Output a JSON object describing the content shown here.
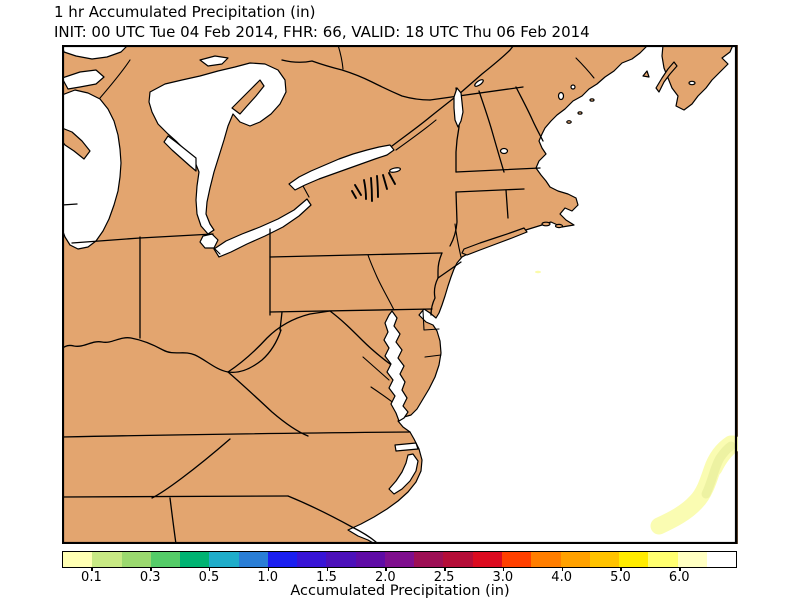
{
  "title": {
    "line1": "1 hr Accumulated Precipitation (in)",
    "line2": "INIT: 00 UTC Tue 04 Feb 2014, FHR: 66, VALID: 18 UTC Thu 06 Feb 2014"
  },
  "colorbar": {
    "label": "Accumulated Precipitation (in)",
    "tick_labels": [
      "0.1",
      "0.3",
      "0.5",
      "1.0",
      "1.5",
      "2.0",
      "2.5",
      "3.0",
      "4.0",
      "5.0",
      "6.0"
    ],
    "tick_values": [
      0.1,
      0.3,
      0.5,
      1.0,
      1.5,
      2.0,
      2.5,
      3.0,
      4.0,
      5.0,
      6.0
    ],
    "tick_boundary_indices": [
      1,
      3,
      5,
      7,
      9,
      11,
      13,
      15,
      17,
      19,
      21
    ],
    "num_segments": 23,
    "segment_colors": [
      "#ffffb3",
      "#c8e984",
      "#9bd96f",
      "#55cc68",
      "#00b372",
      "#1fadca",
      "#2a7ed6",
      "#1b1ff0",
      "#3814d6",
      "#4c10ba",
      "#5f0ba6",
      "#7f0e8e",
      "#9d0f55",
      "#b50d38",
      "#dc0b20",
      "#ff4000",
      "#ff7e00",
      "#ffa100",
      "#ffc300",
      "#ffec00",
      "#ffff70",
      "#ffffc2",
      "#ffffff"
    ]
  },
  "map": {
    "land_color": "#e3a56f",
    "water_color": "#ffffff",
    "line_color": "#000000",
    "precipitation": {
      "offshore_band": {
        "description": "light precip area (< 0.1 in) offshore in the southeast corner of the map",
        "outer_color": "#fafcb2",
        "inner_color": "#edf2a2"
      },
      "speck": {
        "description": "tiny light precip speck off the New England coast",
        "color": "#fbfbaa"
      }
    }
  }
}
